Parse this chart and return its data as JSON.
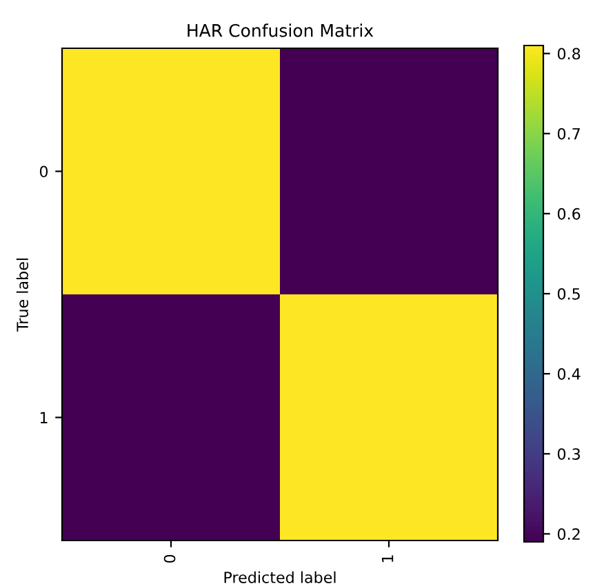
{
  "chart_data": {
    "type": "heatmap",
    "title": "HAR Confusion Matrix",
    "xlabel": "Predicted label",
    "ylabel": "True label",
    "categories": [
      "0",
      "1"
    ],
    "y_categories": [
      "0",
      "1"
    ],
    "cells": [
      [
        0.81,
        0.19
      ],
      [
        0.19,
        0.81
      ]
    ],
    "clim": [
      0.19,
      0.81
    ],
    "cticks": [
      0.2,
      0.3,
      0.4,
      0.5,
      0.6,
      0.7,
      0.8
    ],
    "grid": false
  }
}
